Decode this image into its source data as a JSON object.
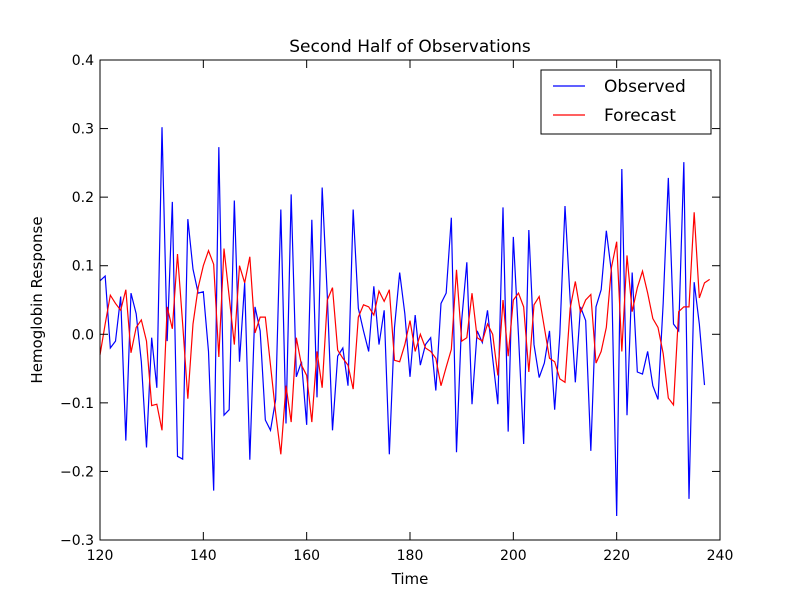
{
  "chart_data": {
    "type": "line",
    "title": "Second Half of Observations",
    "xlabel": "Time",
    "ylabel": "Hemoglobin Response",
    "xlim": [
      120,
      240
    ],
    "ylim": [
      -0.3,
      0.4
    ],
    "xticks": [
      120,
      140,
      160,
      180,
      200,
      220,
      240
    ],
    "yticks": [
      -0.3,
      -0.2,
      -0.1,
      0.0,
      0.1,
      0.2,
      0.3,
      0.4
    ],
    "ytick_labels": [
      "−0.3",
      "−0.2",
      "−0.1",
      "0.0",
      "0.1",
      "0.2",
      "0.3",
      "0.4"
    ],
    "grid": false,
    "legend": {
      "position": "top-right"
    },
    "x_start": 120,
    "series": [
      {
        "name": "Observed",
        "color": "#0000ff",
        "values": [
          0.078,
          0.085,
          -0.02,
          -0.01,
          0.055,
          -0.155,
          0.06,
          0.03,
          -0.04,
          -0.165,
          -0.005,
          -0.078,
          0.302,
          -0.01,
          0.193,
          -0.178,
          -0.182,
          0.168,
          0.095,
          0.06,
          0.062,
          -0.025,
          -0.228,
          0.273,
          -0.118,
          -0.11,
          0.195,
          -0.04,
          0.075,
          -0.183,
          0.04,
          0.005,
          -0.125,
          -0.14,
          -0.095,
          0.182,
          -0.13,
          0.204,
          -0.062,
          -0.04,
          -0.132,
          0.167,
          -0.092,
          0.214,
          0.055,
          -0.14,
          -0.032,
          -0.02,
          -0.075,
          0.182,
          0.038,
          0.005,
          -0.025,
          0.07,
          -0.015,
          0.035,
          -0.175,
          0.01,
          0.09,
          0.03,
          -0.062,
          0.028,
          -0.045,
          -0.015,
          -0.005,
          -0.082,
          0.045,
          0.06,
          0.17,
          -0.172,
          0.02,
          0.105,
          -0.102,
          0.005,
          -0.012,
          0.035,
          -0.035,
          -0.102,
          0.185,
          -0.142,
          0.142,
          -0.002,
          -0.16,
          0.152,
          -0.015,
          -0.063,
          -0.042,
          0.005,
          -0.11,
          0.0,
          0.187,
          0.05,
          -0.07,
          0.04,
          0.02,
          -0.17,
          0.04,
          0.065,
          0.151,
          0.09,
          -0.265,
          0.241,
          -0.118,
          0.09,
          -0.055,
          -0.058,
          -0.025,
          -0.075,
          -0.095,
          0.045,
          0.228,
          0.015,
          0.005,
          0.251,
          -0.24,
          0.076,
          0.015,
          -0.074
        ]
      },
      {
        "name": "Forecast",
        "color": "#ff0000",
        "values": [
          -0.03,
          0.015,
          0.057,
          0.045,
          0.035,
          0.065,
          -0.027,
          0.01,
          0.021,
          -0.01,
          -0.104,
          -0.102,
          -0.14,
          0.04,
          0.008,
          0.117,
          0.015,
          -0.094,
          0.015,
          0.068,
          0.1,
          0.122,
          0.102,
          -0.033,
          0.125,
          0.055,
          -0.015,
          0.1,
          0.075,
          0.113,
          0.002,
          0.025,
          0.025,
          -0.045,
          -0.115,
          -0.175,
          -0.075,
          -0.128,
          -0.005,
          -0.045,
          -0.06,
          -0.128,
          -0.025,
          -0.078,
          0.05,
          0.068,
          -0.023,
          -0.035,
          -0.045,
          -0.08,
          0.025,
          0.043,
          0.04,
          0.028,
          0.063,
          0.048,
          0.065,
          -0.038,
          -0.04,
          -0.015,
          0.02,
          -0.025,
          0.0,
          -0.02,
          -0.025,
          -0.035,
          -0.075,
          -0.048,
          -0.022,
          0.094,
          -0.01,
          -0.005,
          0.06,
          -0.005,
          -0.01,
          0.015,
          0.0,
          -0.06,
          0.05,
          -0.032,
          0.05,
          0.06,
          0.04,
          -0.055,
          0.043,
          0.055,
          0.01,
          -0.035,
          -0.04,
          -0.065,
          -0.07,
          0.038,
          0.077,
          0.032,
          0.05,
          0.058,
          -0.042,
          -0.025,
          0.01,
          0.098,
          0.135,
          -0.025,
          0.115,
          0.033,
          0.068,
          0.092,
          0.06,
          0.023,
          0.01,
          -0.028,
          -0.093,
          -0.103,
          0.033,
          0.04,
          0.04,
          0.178,
          0.053,
          0.075,
          0.08
        ]
      }
    ]
  }
}
